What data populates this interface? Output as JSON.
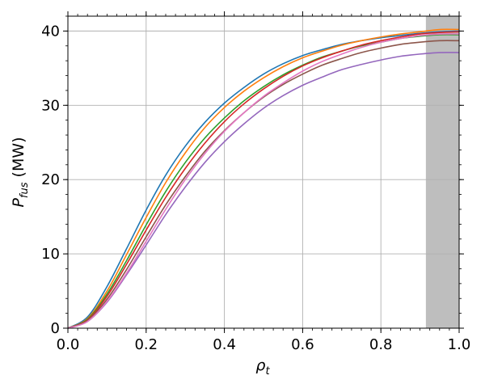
{
  "chart_data": {
    "type": "line",
    "xlabel": {
      "main": "ρ",
      "sub": "t"
    },
    "ylabel": {
      "main": "P",
      "sub": "fus",
      "rest": " (MW)"
    },
    "xlim": [
      0,
      1
    ],
    "ylim": [
      0,
      42
    ],
    "x_ticks": [
      "0.0",
      "0.2",
      "0.4",
      "0.6",
      "0.8",
      "1.0"
    ],
    "y_ticks": [
      "0",
      "10",
      "20",
      "30",
      "40"
    ],
    "grid": true,
    "shaded_region": {
      "x_start": 0.915,
      "x_end": 1.0,
      "color": "#bebebe"
    },
    "x": [
      0,
      0.05,
      0.1,
      0.15,
      0.2,
      0.25,
      0.3,
      0.35,
      0.4,
      0.45,
      0.5,
      0.55,
      0.6,
      0.65,
      0.7,
      0.75,
      0.8,
      0.85,
      0.9,
      0.95,
      1.0
    ],
    "series": [
      {
        "color": "#1f77b4",
        "values": [
          0,
          1.5,
          5.6,
          10.7,
          15.9,
          20.6,
          24.5,
          27.7,
          30.3,
          32.4,
          34.2,
          35.6,
          36.7,
          37.5,
          38.2,
          38.7,
          39.1,
          39.4,
          39.7,
          39.9,
          40.0
        ]
      },
      {
        "color": "#ff7f0e",
        "values": [
          0,
          1.3,
          5.0,
          9.9,
          14.9,
          19.6,
          23.6,
          27.0,
          29.7,
          31.9,
          33.7,
          35.2,
          36.4,
          37.3,
          38.1,
          38.7,
          39.2,
          39.6,
          39.9,
          40.2,
          40.2
        ]
      },
      {
        "color": "#2ca02c",
        "values": [
          0,
          1.2,
          4.6,
          9.1,
          13.9,
          18.4,
          22.3,
          25.6,
          28.3,
          30.6,
          32.5,
          34.1,
          35.4,
          36.5,
          37.3,
          38.0,
          38.5,
          39.0,
          39.3,
          39.5,
          39.5
        ]
      },
      {
        "color": "#d62728",
        "values": [
          0,
          1.1,
          4.3,
          8.6,
          13.2,
          17.6,
          21.5,
          24.9,
          27.8,
          30.2,
          32.2,
          33.9,
          35.3,
          36.4,
          37.3,
          38.1,
          38.7,
          39.2,
          39.6,
          39.8,
          39.9
        ]
      },
      {
        "color": "#9467bd",
        "values": [
          0,
          0.9,
          3.5,
          7.2,
          11.2,
          15.3,
          19.0,
          22.3,
          25.1,
          27.5,
          29.6,
          31.3,
          32.7,
          33.8,
          34.8,
          35.5,
          36.1,
          36.6,
          36.9,
          37.1,
          37.1
        ]
      },
      {
        "color": "#8c564b",
        "values": [
          0,
          1.0,
          3.9,
          7.9,
          12.3,
          16.6,
          20.4,
          23.8,
          26.6,
          29.0,
          31.1,
          32.8,
          34.2,
          35.4,
          36.3,
          37.1,
          37.7,
          38.2,
          38.5,
          38.7,
          38.7
        ]
      },
      {
        "color": "#e377c2",
        "values": [
          0,
          0.9,
          3.6,
          7.4,
          11.7,
          16.0,
          20.0,
          23.5,
          26.5,
          29.0,
          31.2,
          33.0,
          34.6,
          35.9,
          36.9,
          37.8,
          38.5,
          39.0,
          39.4,
          39.6,
          39.6
        ]
      }
    ]
  }
}
